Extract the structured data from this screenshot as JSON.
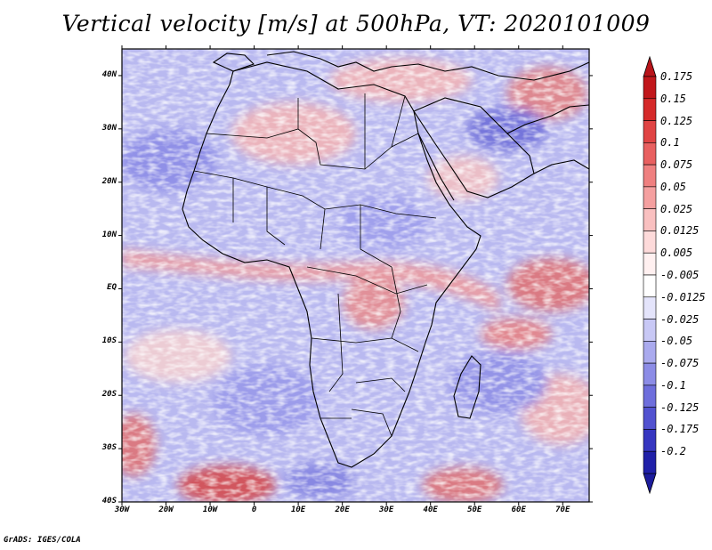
{
  "title": "Vertical velocity [m/s] at 500hPa, VT: 2020101009",
  "credit": "GrADS: IGES/COLA",
  "map": {
    "projection": "latlon",
    "lon_range": [
      -30,
      76
    ],
    "lat_range": [
      -40,
      45
    ],
    "lat_ticks": [
      {
        "label": "40N",
        "value": 40
      },
      {
        "label": "30N",
        "value": 30
      },
      {
        "label": "20N",
        "value": 20
      },
      {
        "label": "10N",
        "value": 10
      },
      {
        "label": "EQ",
        "value": 0
      },
      {
        "label": "10S",
        "value": -10
      },
      {
        "label": "20S",
        "value": -20
      },
      {
        "label": "30S",
        "value": -30
      },
      {
        "label": "40S",
        "value": -40
      }
    ],
    "lon_ticks": [
      {
        "label": "30W",
        "value": -30
      },
      {
        "label": "20W",
        "value": -20
      },
      {
        "label": "10W",
        "value": -10
      },
      {
        "label": "0",
        "value": 0
      },
      {
        "label": "10E",
        "value": 10
      },
      {
        "label": "20E",
        "value": 20
      },
      {
        "label": "30E",
        "value": 30
      },
      {
        "label": "40E",
        "value": 40
      },
      {
        "label": "50E",
        "value": 50
      },
      {
        "label": "60E",
        "value": 60
      },
      {
        "label": "70E",
        "value": 70
      }
    ]
  },
  "colorbar": {
    "levels": [
      {
        "label": "0.175",
        "color": "#c1171b"
      },
      {
        "label": "0.15",
        "color": "#d52a2a"
      },
      {
        "label": "0.125",
        "color": "#e04444"
      },
      {
        "label": "0.1",
        "color": "#e86060"
      },
      {
        "label": "0.075",
        "color": "#ef8080"
      },
      {
        "label": "0.05",
        "color": "#f5a0a0"
      },
      {
        "label": "0.025",
        "color": "#f9c0c0"
      },
      {
        "label": "0.0125",
        "color": "#fddada"
      },
      {
        "label": "0.005",
        "color": "#fff0f0"
      },
      {
        "label": "-0.005",
        "color": "#ffffff"
      },
      {
        "label": "-0.0125",
        "color": "#e4e4fb"
      },
      {
        "label": "-0.025",
        "color": "#c8c8f5"
      },
      {
        "label": "-0.05",
        "color": "#aaaaee"
      },
      {
        "label": "-0.075",
        "color": "#8c8ce6"
      },
      {
        "label": "-0.1",
        "color": "#6e6edc"
      },
      {
        "label": "-0.125",
        "color": "#5252d0"
      },
      {
        "label": "-0.175",
        "color": "#3636c0"
      },
      {
        "label": "-0.2",
        "color": "#2020a8"
      }
    ],
    "over_color": "#b8141a",
    "under_color": "#1c1c9c"
  }
}
